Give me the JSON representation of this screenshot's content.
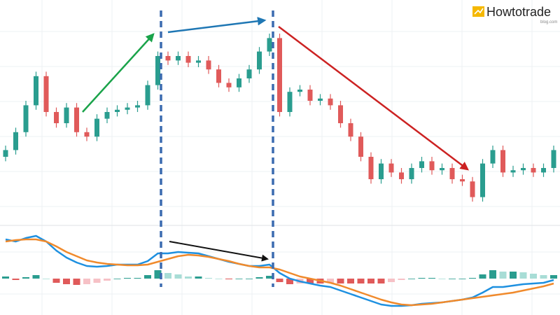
{
  "brand": {
    "name": "Howtotrade",
    "sub": "blog.com"
  },
  "chart_data": {
    "type": "candlestick",
    "up_color": "#2a9d8f",
    "down_color": "#e05a5a",
    "ylim": [
      0,
      100
    ],
    "open": [
      30,
      33,
      41,
      53,
      66,
      50,
      45,
      52,
      41,
      39,
      47,
      50,
      51,
      52,
      53,
      62,
      75,
      73,
      75,
      72,
      73,
      69,
      63,
      61,
      65,
      69,
      77,
      83,
      50,
      59,
      60,
      55,
      56,
      53,
      45,
      39,
      30,
      20,
      27,
      23,
      20,
      25,
      28,
      24,
      25,
      20,
      19,
      12,
      27,
      33,
      23,
      24,
      25,
      23,
      25
    ],
    "high": [
      35,
      43,
      55,
      68,
      68,
      52,
      54,
      54,
      43,
      49,
      52,
      53,
      54,
      55,
      64,
      77,
      77,
      77,
      77,
      75,
      75,
      71,
      65,
      67,
      71,
      79,
      85,
      85,
      61,
      62,
      62,
      58,
      58,
      55,
      47,
      41,
      32,
      29,
      29,
      25,
      27,
      30,
      30,
      27,
      27,
      22,
      21,
      29,
      35,
      35,
      26,
      27,
      27,
      27,
      35
    ],
    "low": [
      28,
      31,
      39,
      51,
      48,
      43,
      43,
      39,
      37,
      37,
      45,
      48,
      49,
      50,
      51,
      60,
      71,
      71,
      70,
      70,
      67,
      61,
      59,
      59,
      63,
      67,
      75,
      48,
      48,
      57,
      53,
      53,
      51,
      43,
      37,
      28,
      18,
      18,
      21,
      18,
      18,
      23,
      22,
      22,
      18,
      17,
      10,
      10,
      25,
      21,
      21,
      22,
      21,
      21,
      23
    ],
    "close": [
      33,
      41,
      53,
      66,
      50,
      45,
      52,
      41,
      39,
      47,
      50,
      51,
      52,
      53,
      62,
      75,
      73,
      75,
      72,
      73,
      69,
      63,
      61,
      65,
      69,
      77,
      83,
      50,
      59,
      60,
      55,
      56,
      53,
      45,
      39,
      30,
      20,
      27,
      23,
      20,
      25,
      28,
      24,
      25,
      20,
      19,
      12,
      27,
      33,
      23,
      24,
      25,
      23,
      25,
      33
    ],
    "macd": {
      "ylim": [
        -10,
        16
      ],
      "macd_line": {
        "color": "#1e90e0",
        "values": [
          11.2,
          10.6,
          11.6,
          12.2,
          10.6,
          8,
          6,
          4.6,
          3.6,
          3.4,
          3.6,
          4,
          4,
          4,
          5,
          7.2,
          7.2,
          7.6,
          7.4,
          7.2,
          6.4,
          5.6,
          4.8,
          4.2,
          3.6,
          3.6,
          4,
          1.6,
          0,
          -0.8,
          -1.4,
          -2,
          -2.4,
          -3.4,
          -4.4,
          -5.4,
          -6.4,
          -7.4,
          -7.8,
          -7.8,
          -7.6,
          -7.2,
          -7,
          -6.8,
          -6.4,
          -6,
          -5.4,
          -4,
          -2.4,
          -2.4,
          -2,
          -1.6,
          -1.4,
          -1.2,
          -0.4
        ]
      },
      "signal_line": {
        "color": "#f08a2c",
        "values": [
          10.6,
          11,
          11.2,
          11.2,
          10.6,
          9.2,
          7.6,
          6.4,
          5.2,
          4.6,
          4.2,
          4,
          3.8,
          3.8,
          4,
          4.8,
          5.6,
          6.4,
          6.8,
          6.6,
          6.2,
          5.6,
          5,
          4.2,
          3.6,
          3.2,
          3.2,
          2.6,
          1.6,
          0.6,
          0,
          -0.6,
          -1.2,
          -2,
          -3,
          -4,
          -5,
          -6,
          -6.8,
          -7.4,
          -7.6,
          -7.4,
          -7.2,
          -6.8,
          -6.4,
          -6,
          -5.6,
          -5.2,
          -4.8,
          -4.4,
          -4,
          -3.4,
          -2.8,
          -2.2,
          -1.4
        ]
      },
      "histogram": {
        "colors": [
          "#2a9d8f",
          "#a8ddd6",
          "#e05a5a",
          "#f6c1c6"
        ],
        "values": [
          0.6,
          -0.4,
          0.4,
          1,
          0,
          -1.2,
          -1.6,
          -1.8,
          -1.6,
          -1.2,
          -0.6,
          0,
          0.2,
          0.2,
          1,
          2.4,
          1.6,
          1.2,
          0.6,
          0.6,
          0.2,
          0,
          -0.2,
          0,
          0,
          0.4,
          0.8,
          -1,
          -1.6,
          -1.4,
          -1.4,
          -1.4,
          -1.2,
          -1.4,
          -1.4,
          -1.4,
          -1.4,
          -1.4,
          -1,
          -0.4,
          0,
          0.2,
          0.2,
          0,
          0,
          0,
          0.2,
          1.2,
          2.4,
          2,
          2,
          1.8,
          1.4,
          1,
          1
        ]
      }
    }
  }
}
